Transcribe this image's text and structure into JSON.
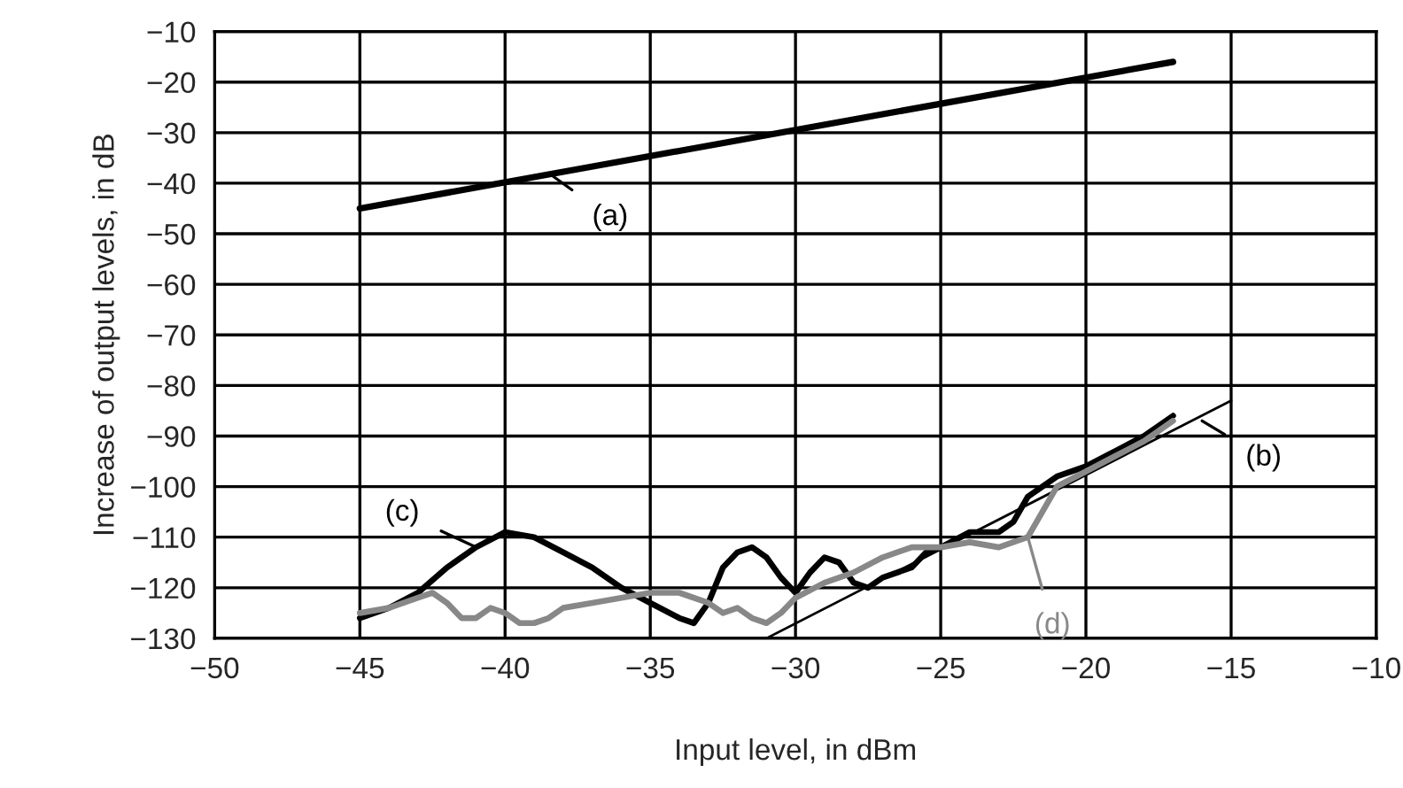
{
  "chart_data": {
    "type": "line",
    "xlabel": "Input level, in dBm",
    "ylabel": "Increase of output levels, in dB",
    "xlim": [
      -50,
      -10
    ],
    "xticks": [
      -50,
      -45,
      -40,
      -35,
      -30,
      -25,
      -20,
      -15,
      -10
    ],
    "ylim": [
      -130,
      -10
    ],
    "yticks": [
      -130,
      -120,
      -110,
      -100,
      -90,
      -80,
      -70,
      -60,
      -50,
      -40,
      -30,
      -20,
      -10
    ],
    "grid": true,
    "marker": "none",
    "line_style": "solid",
    "series": [
      {
        "color": "#000000",
        "x": [
          -45,
          -17
        ],
        "values": [
          -45,
          -16
        ]
      },
      {
        "color": "#000000",
        "x": [
          -31,
          -15
        ],
        "values": [
          -130,
          -83
        ]
      },
      {
        "color": "#000000",
        "x": [
          -45,
          -44,
          -43,
          -42,
          -41,
          -40,
          -39,
          -38,
          -37,
          -36,
          -35,
          -34,
          -33.5,
          -33,
          -32.5,
          -32,
          -31.5,
          -31,
          -30.5,
          -30,
          -29.5,
          -29,
          -28.5,
          -28,
          -27.5,
          -27,
          -26,
          -25.5,
          -25,
          -24,
          -23,
          -22.5,
          -22,
          -21,
          -20,
          -19,
          -18,
          -17
        ],
        "values": [
          -126,
          -124,
          -121,
          -116,
          -112,
          -109,
          -110,
          -113,
          -116,
          -120,
          -123,
          -126,
          -127,
          -123,
          -116,
          -113,
          -112,
          -114,
          -118,
          -121,
          -117,
          -114,
          -115,
          -119,
          -120,
          -118,
          -116,
          -113,
          -112,
          -109,
          -109,
          -107,
          -102,
          -98,
          -96,
          -93,
          -90,
          -86
        ]
      },
      {
        "color": "#888888",
        "x": [
          -45,
          -44,
          -43,
          -42.5,
          -42,
          -41.5,
          -41,
          -40.5,
          -40,
          -39.5,
          -39,
          -38.5,
          -38,
          -37,
          -36,
          -35,
          -34,
          -33,
          -32.5,
          -32,
          -31.5,
          -31,
          -30.5,
          -30,
          -29,
          -28,
          -27,
          -26,
          -25,
          -24,
          -23,
          -22,
          -21.5,
          -21,
          -20,
          -19,
          -18,
          -17
        ],
        "values": [
          -125,
          -124,
          -122,
          -121,
          -123,
          -126,
          -126,
          -124,
          -125,
          -127,
          -127,
          -126,
          -124,
          -123,
          -122,
          -121,
          -121,
          -123,
          -125,
          -124,
          -126,
          -127,
          -125,
          -122,
          -119,
          -117,
          -114,
          -112,
          -112,
          -111,
          -112,
          -110,
          -105,
          -100,
          -97,
          -94,
          -91,
          -87
        ]
      }
    ],
    "annotations": [
      {
        "text": "(a)",
        "x": -38.5,
        "y": -38
      },
      {
        "text": "(b)",
        "x": -16,
        "y": -87
      },
      {
        "text": "(c)",
        "x": -41,
        "y": -112
      },
      {
        "text": "(d)",
        "x": -22,
        "y": -110
      }
    ]
  }
}
